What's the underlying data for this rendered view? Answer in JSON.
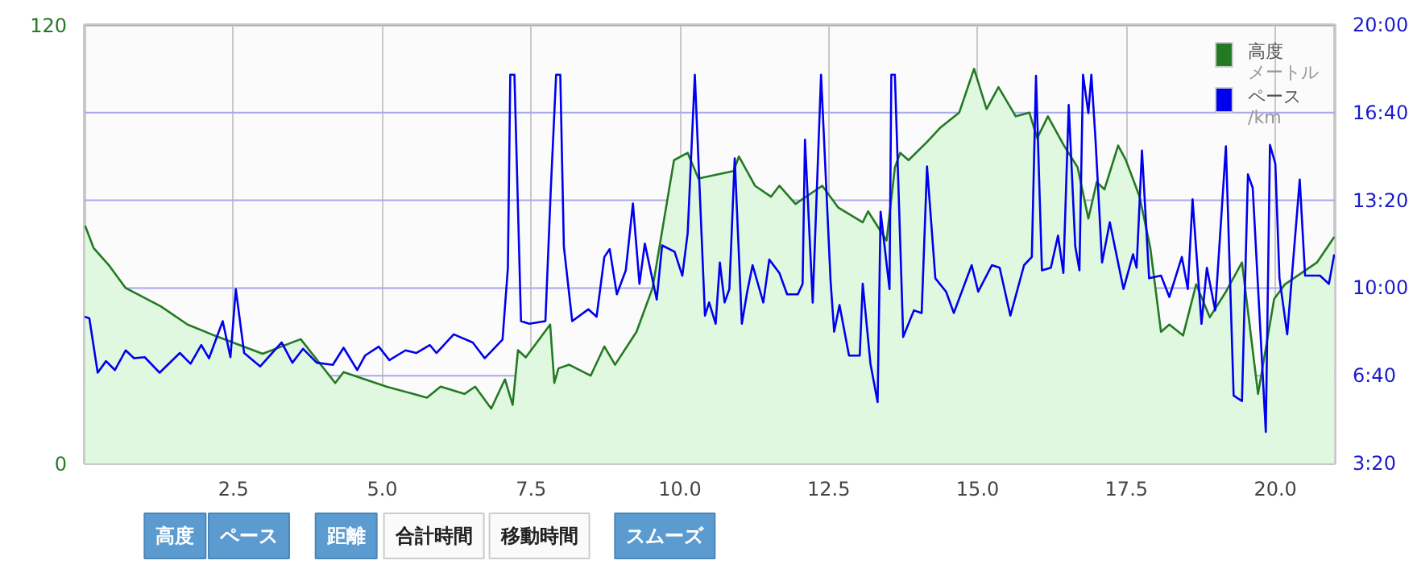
{
  "chart_data": {
    "type": "area",
    "xlim": [
      0,
      21
    ],
    "xticks": [
      {
        "value": 2.5,
        "label": "2.5"
      },
      {
        "value": 5,
        "label": "5.0"
      },
      {
        "value": 7.5,
        "label": "7.5"
      },
      {
        "value": 10,
        "label": "10.0"
      },
      {
        "value": 12.5,
        "label": "12.5"
      },
      {
        "value": 15,
        "label": "15.0"
      },
      {
        "value": 17.5,
        "label": "17.5"
      },
      {
        "value": 20,
        "label": "20.0"
      }
    ],
    "ylim": [
      0,
      120
    ],
    "yticks": [
      0,
      120
    ],
    "y2lim": [
      3.333,
      20
    ],
    "y2ticks": [
      {
        "value": 3.333,
        "label": "3:20"
      },
      {
        "value": 6.667,
        "label": "6:40"
      },
      {
        "value": 10,
        "label": "10:00"
      },
      {
        "value": 13.333,
        "label": "13:20"
      },
      {
        "value": 16.667,
        "label": "16:40"
      },
      {
        "value": 20,
        "label": "20:00"
      }
    ],
    "grid": true,
    "legend": "top right",
    "annotations": [
      "高度",
      "ペース",
      "距離",
      "合計時間",
      "移動時間",
      "スムーズ",
      "メートル",
      "/km"
    ],
    "series": [
      {
        "name": "高度",
        "color": "#237a23",
        "x": [
          0.01,
          0.15,
          0.42,
          0.69,
          1.28,
          1.73,
          2.18,
          2.99,
          3.63,
          4.21,
          4.35,
          5.07,
          5.75,
          5.98,
          6.38,
          6.56,
          6.83,
          7.06,
          7.19,
          7.28,
          7.41,
          7.82,
          7.89,
          7.96,
          8.14,
          8.5,
          8.73,
          8.91,
          9.27,
          9.54,
          9.9,
          10.13,
          10.31,
          10.9,
          10.99,
          11.26,
          11.53,
          11.67,
          11.94,
          12.39,
          12.66,
          13.07,
          13.16,
          13.47,
          13.61,
          13.7,
          13.84,
          14.15,
          14.38,
          14.69,
          14.94,
          15.15,
          15.35,
          15.64,
          15.87,
          16.0,
          16.18,
          16.45,
          16.68,
          16.86,
          17.0,
          17.13,
          17.36,
          17.49,
          17.72,
          17.9,
          18.08,
          18.22,
          18.45,
          18.67,
          18.9,
          19.17,
          19.44,
          19.71,
          19.98,
          20.16,
          20.7,
          20.99
        ],
        "values": [
          65,
          59,
          54,
          48,
          43,
          38,
          35,
          30,
          34,
          22,
          25,
          21,
          18,
          21,
          19,
          21,
          15,
          23,
          16,
          31,
          29,
          38,
          22,
          26,
          27,
          24,
          32,
          27,
          36,
          48,
          83,
          85,
          78,
          80,
          84,
          76,
          73,
          76,
          71,
          76,
          70,
          66,
          69,
          61,
          81,
          85,
          83,
          88,
          92,
          96,
          108,
          97,
          103,
          95,
          96,
          89,
          95,
          87,
          81,
          67,
          77,
          75,
          87,
          83,
          73,
          59,
          36,
          38,
          35,
          49,
          40,
          47,
          55,
          19,
          45,
          49,
          55,
          62
        ]
      },
      {
        "name": "ペース",
        "color": "#0000ee",
        "type": "line",
        "axis": "y2",
        "x": [
          0.0,
          0.08,
          0.22,
          0.36,
          0.51,
          0.69,
          0.83,
          1.01,
          1.26,
          1.6,
          1.78,
          1.96,
          2.09,
          2.32,
          2.45,
          2.54,
          2.68,
          2.95,
          3.31,
          3.49,
          3.67,
          3.9,
          4.17,
          4.35,
          4.58,
          4.71,
          4.94,
          5.12,
          5.39,
          5.57,
          5.8,
          5.91,
          6.2,
          6.52,
          6.72,
          7.02,
          7.11,
          7.15,
          7.22,
          7.33,
          7.47,
          7.74,
          7.83,
          7.92,
          7.99,
          8.05,
          8.19,
          8.46,
          8.6,
          8.73,
          8.82,
          8.94,
          9.09,
          9.21,
          9.32,
          9.41,
          9.61,
          9.7,
          9.91,
          10.04,
          10.13,
          10.25,
          10.42,
          10.49,
          10.6,
          10.67,
          10.75,
          10.83,
          10.92,
          11.04,
          11.13,
          11.22,
          11.4,
          11.5,
          11.67,
          11.8,
          11.98,
          12.06,
          12.1,
          12.23,
          12.37,
          12.53,
          12.59,
          12.68,
          12.84,
          13.02,
          13.07,
          13.2,
          13.32,
          13.37,
          13.52,
          13.55,
          13.61,
          13.75,
          13.93,
          14.06,
          14.15,
          14.29,
          14.47,
          14.6,
          14.9,
          15.01,
          15.24,
          15.37,
          15.55,
          15.78,
          15.91,
          15.98,
          16.08,
          16.23,
          16.35,
          16.44,
          16.53,
          16.64,
          16.71,
          16.77,
          16.86,
          16.91,
          16.98,
          17.09,
          17.22,
          17.45,
          17.61,
          17.67,
          17.76,
          17.88,
          18.08,
          18.22,
          18.43,
          18.53,
          18.61,
          18.76,
          18.85,
          18.99,
          19.17,
          19.3,
          19.44,
          19.54,
          19.62,
          19.84,
          19.91,
          20.0,
          20.07,
          20.2,
          20.41,
          20.5,
          20.75,
          20.9,
          20.99
        ],
        "values": [
          8.91,
          8.85,
          6.78,
          7.22,
          6.88,
          7.63,
          7.33,
          7.37,
          6.78,
          7.53,
          7.12,
          7.83,
          7.33,
          8.74,
          7.37,
          9.96,
          7.53,
          7.02,
          7.93,
          7.16,
          7.69,
          7.16,
          7.08,
          7.73,
          6.88,
          7.43,
          7.77,
          7.26,
          7.63,
          7.53,
          7.83,
          7.53,
          8.24,
          7.93,
          7.33,
          8.04,
          10.77,
          18.11,
          18.11,
          8.74,
          8.64,
          8.74,
          13.71,
          18.11,
          18.11,
          11.58,
          8.74,
          9.19,
          8.91,
          11.18,
          11.48,
          9.76,
          10.67,
          13.21,
          10.16,
          11.69,
          9.56,
          11.62,
          11.38,
          10.47,
          12.09,
          18.11,
          8.95,
          9.45,
          8.64,
          10.97,
          9.45,
          9.96,
          14.93,
          8.64,
          9.86,
          10.87,
          9.45,
          11.08,
          10.57,
          9.76,
          9.76,
          10.16,
          15.64,
          9.45,
          18.11,
          10.27,
          8.34,
          9.35,
          7.43,
          7.43,
          10.16,
          7.12,
          5.66,
          12.9,
          9.96,
          18.11,
          18.11,
          8.14,
          9.15,
          9.05,
          14.62,
          10.37,
          9.86,
          9.05,
          10.87,
          9.86,
          10.87,
          10.77,
          8.95,
          10.87,
          11.18,
          18.07,
          10.67,
          10.77,
          11.99,
          10.57,
          16.96,
          11.58,
          10.67,
          18.11,
          16.65,
          18.11,
          15.64,
          10.97,
          12.5,
          9.96,
          11.28,
          10.77,
          15.23,
          10.37,
          10.47,
          9.66,
          11.18,
          9.96,
          13.37,
          8.64,
          10.77,
          9.15,
          15.39,
          5.91,
          5.7,
          14.32,
          13.81,
          4.53,
          15.44,
          14.73,
          10.37,
          8.24,
          14.12,
          10.47,
          10.47,
          10.16,
          11.28
        ]
      }
    ]
  }
}
